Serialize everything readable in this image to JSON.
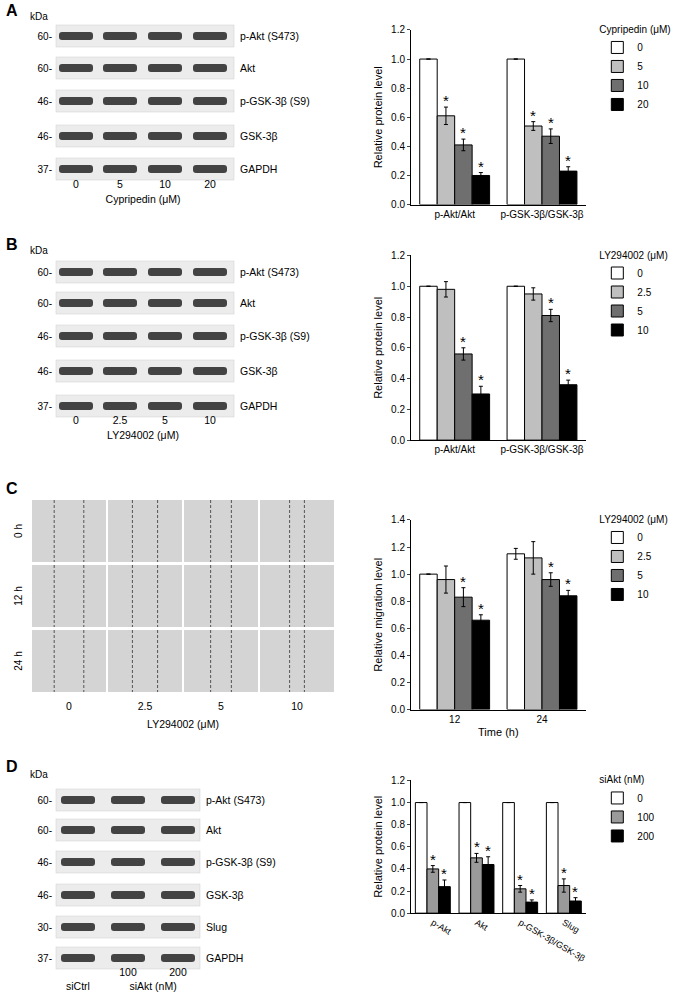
{
  "panel_labels": [
    "A",
    "B",
    "C",
    "D"
  ],
  "blots": [
    {
      "header": "kDa",
      "rows": [
        {
          "label": "p-Akt (S473)",
          "kda": "60-"
        },
        {
          "label": "Akt",
          "kda": "60-"
        },
        {
          "label": "p-GSK-3β (S9)",
          "kda": "46-"
        },
        {
          "label": "GSK-3β",
          "kda": "46-"
        },
        {
          "label": "GAPDH",
          "kda": "37-"
        }
      ],
      "lanes": [
        "0",
        "5",
        "10",
        "20"
      ],
      "xlabel": "Cypripedin (μM)"
    },
    {
      "header": "kDa",
      "rows": [
        {
          "label": "p-Akt (S473)",
          "kda": "60-"
        },
        {
          "label": "Akt",
          "kda": "60-"
        },
        {
          "label": "p-GSK-3β (S9)",
          "kda": "46-"
        },
        {
          "label": "GSK-3β",
          "kda": "46-"
        },
        {
          "label": "GAPDH",
          "kda": "37-"
        }
      ],
      "lanes": [
        "0",
        "2.5",
        "5",
        "10"
      ],
      "xlabel": "LY294002 (μM)"
    },
    {
      "header": "kDa",
      "rows": [
        {
          "label": "p-Akt (S473)",
          "kda": "60-"
        },
        {
          "label": "Akt",
          "kda": "60-"
        },
        {
          "label": "p-GSK-3β (S9)",
          "kda": "46-"
        },
        {
          "label": "GSK-3β",
          "kda": "46-"
        },
        {
          "label": "Slug",
          "kda": "30-"
        },
        {
          "label": "GAPDH",
          "kda": "37-"
        }
      ],
      "lanes": [
        "siCtrl",
        "100",
        "200"
      ],
      "xlabel": "siAkt (nM)"
    }
  ],
  "scratch": {
    "rows": [
      "0 h",
      "12 h",
      "24 h"
    ],
    "columns": [
      "0",
      "2.5",
      "5",
      "10"
    ],
    "xlabel": "LY294002 (μM)"
  },
  "chart_data": [
    {
      "type": "bar",
      "categories": [
        "p-Akt/Akt",
        "p-GSK-3β/GSK-3β"
      ],
      "ylabel": "Relative protein level",
      "legend_title": "Cypripedin (μM)",
      "legend": "right",
      "grid": false,
      "ylim": [
        0,
        1.2
      ],
      "yticks": [
        {
          "value": 0,
          "label": "0.0"
        },
        {
          "value": 0.2,
          "label": "0.2"
        },
        {
          "value": 0.4,
          "label": "0.4"
        },
        {
          "value": 0.6,
          "label": "0.6"
        },
        {
          "value": 0.8,
          "label": "0.8"
        },
        {
          "value": 1,
          "label": "1.0"
        },
        {
          "value": 1.2,
          "label": "1.2"
        }
      ],
      "series": [
        {
          "name": "0",
          "color": "#ffffff",
          "values": [
            1,
            1
          ],
          "errors": [
            0,
            0
          ],
          "marks": [
            null,
            null
          ]
        },
        {
          "name": "5",
          "color": "#bfbfbf",
          "values": [
            0.61,
            0.54
          ],
          "errors": [
            0.06,
            0.03
          ],
          "marks": [
            "*",
            "*"
          ]
        },
        {
          "name": "10",
          "color": "#6f6f6f",
          "values": [
            0.41,
            0.47
          ],
          "errors": [
            0.04,
            0.05
          ],
          "marks": [
            "*",
            "*"
          ]
        },
        {
          "name": "20",
          "color": "#000000",
          "values": [
            0.2,
            0.23
          ],
          "errors": [
            0.02,
            0.03
          ],
          "marks": [
            "*",
            "*"
          ]
        }
      ]
    },
    {
      "type": "bar",
      "categories": [
        "p-Akt/Akt",
        "p-GSK-3β/GSK-3β"
      ],
      "ylabel": "Relative protein level",
      "legend_title": "LY294002 (μM)",
      "legend": "right",
      "grid": false,
      "ylim": [
        0,
        1.2
      ],
      "yticks": [
        {
          "value": 0,
          "label": "0.0"
        },
        {
          "value": 0.2,
          "label": "0.2"
        },
        {
          "value": 0.4,
          "label": "0.4"
        },
        {
          "value": 0.6,
          "label": "0.6"
        },
        {
          "value": 0.8,
          "label": "0.8"
        },
        {
          "value": 1,
          "label": "1.0"
        },
        {
          "value": 1.2,
          "label": "1.2"
        }
      ],
      "series": [
        {
          "name": "0",
          "color": "#ffffff",
          "values": [
            1,
            1
          ],
          "errors": [
            0,
            0
          ],
          "marks": [
            null,
            null
          ]
        },
        {
          "name": "2.5",
          "color": "#bfbfbf",
          "values": [
            0.98,
            0.95
          ],
          "errors": [
            0.05,
            0.04
          ],
          "marks": [
            null,
            null
          ]
        },
        {
          "name": "5",
          "color": "#6f6f6f",
          "values": [
            0.56,
            0.81
          ],
          "errors": [
            0.04,
            0.04
          ],
          "marks": [
            "*",
            "*"
          ]
        },
        {
          "name": "10",
          "color": "#000000",
          "values": [
            0.3,
            0.36
          ],
          "errors": [
            0.05,
            0.03
          ],
          "marks": [
            "*",
            "*"
          ]
        }
      ]
    },
    {
      "type": "bar",
      "categories": [
        "12",
        "24"
      ],
      "xlabel": "Time (h)",
      "ylabel": "Relative migration level",
      "legend_title": "LY294002 (μM)",
      "legend": "right",
      "grid": false,
      "ylim": [
        0,
        1.4
      ],
      "yticks": [
        {
          "value": 0,
          "label": "0.0"
        },
        {
          "value": 0.2,
          "label": "0.2"
        },
        {
          "value": 0.4,
          "label": "0.4"
        },
        {
          "value": 0.6,
          "label": "0.6"
        },
        {
          "value": 0.8,
          "label": "0.8"
        },
        {
          "value": 1,
          "label": "1.0"
        },
        {
          "value": 1.2,
          "label": "1.2"
        },
        {
          "value": 1.4,
          "label": "1.4"
        }
      ],
      "series": [
        {
          "name": "0",
          "color": "#ffffff",
          "values": [
            1,
            1.15
          ],
          "errors": [
            0,
            0.04
          ],
          "marks": [
            null,
            null
          ]
        },
        {
          "name": "2.5",
          "color": "#bfbfbf",
          "values": [
            0.96,
            1.12
          ],
          "errors": [
            0.1,
            0.12
          ],
          "marks": [
            null,
            null
          ]
        },
        {
          "name": "5",
          "color": "#6f6f6f",
          "values": [
            0.83,
            0.96
          ],
          "errors": [
            0.07,
            0.05
          ],
          "marks": [
            "*",
            "*"
          ]
        },
        {
          "name": "10",
          "color": "#000000",
          "values": [
            0.66,
            0.84
          ],
          "errors": [
            0.04,
            0.04
          ],
          "marks": [
            "*",
            "*"
          ]
        }
      ]
    },
    {
      "type": "bar",
      "categories": [
        "p-Akt",
        "Akt",
        "p-GSK-3β/GSK-3β",
        "Slug"
      ],
      "ylabel": "Relative protein level",
      "legend_title": "siAkt (nM)",
      "legend": "right",
      "grid": false,
      "ylim": [
        0,
        1.2
      ],
      "yticks": [
        {
          "value": 0,
          "label": "0.0"
        },
        {
          "value": 0.2,
          "label": "0.2"
        },
        {
          "value": 0.4,
          "label": "0.4"
        },
        {
          "value": 0.6,
          "label": "0.6"
        },
        {
          "value": 0.8,
          "label": "0.8"
        },
        {
          "value": 1,
          "label": "1.0"
        },
        {
          "value": 1.2,
          "label": "1.2"
        }
      ],
      "series": [
        {
          "name": "0",
          "color": "#ffffff",
          "values": [
            1,
            1,
            1,
            1
          ],
          "errors": [
            0,
            0,
            0,
            0
          ],
          "marks": [
            null,
            null,
            null,
            null
          ]
        },
        {
          "name": "100",
          "color": "#9a9a9a",
          "values": [
            0.4,
            0.5,
            0.22,
            0.25
          ],
          "errors": [
            0.03,
            0.04,
            0.03,
            0.06
          ],
          "marks": [
            "*",
            "*",
            "*",
            "*"
          ]
        },
        {
          "name": "200",
          "color": "#000000",
          "values": [
            0.24,
            0.44,
            0.1,
            0.11
          ],
          "errors": [
            0.06,
            0.07,
            0.02,
            0.03
          ],
          "marks": [
            "*",
            "*",
            "*",
            "*"
          ]
        }
      ]
    }
  ]
}
